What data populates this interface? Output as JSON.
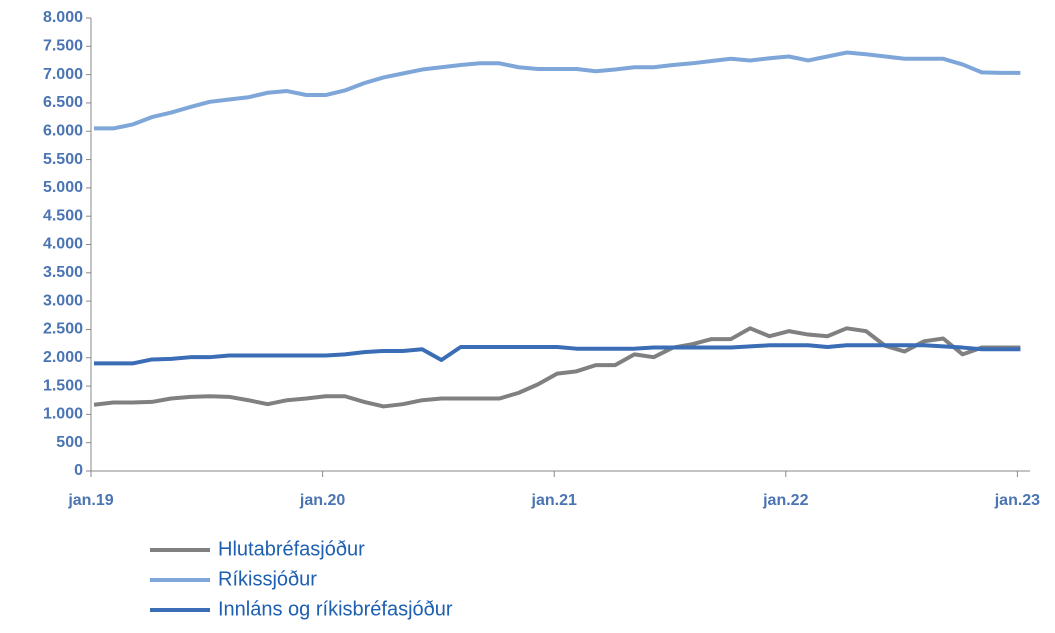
{
  "chart_data": {
    "type": "line",
    "categories": [
      "jan.19",
      null,
      null,
      null,
      null,
      null,
      null,
      null,
      null,
      null,
      null,
      null,
      "jan.20",
      null,
      null,
      null,
      null,
      null,
      null,
      null,
      null,
      null,
      null,
      null,
      "jan.21",
      null,
      null,
      null,
      null,
      null,
      null,
      null,
      null,
      null,
      null,
      null,
      "jan.22",
      null,
      null,
      null,
      null,
      null,
      null,
      null,
      null,
      null,
      null,
      null,
      "jan.23"
    ],
    "series": [
      {
        "name": "Hlutabréfasjóður",
        "color": "#808080",
        "values": [
          1170,
          1210,
          1210,
          1220,
          1280,
          1310,
          1320,
          1310,
          1250,
          1180,
          1250,
          1280,
          1320,
          1320,
          1220,
          1140,
          1180,
          1250,
          1280,
          1280,
          1280,
          1280,
          1380,
          1530,
          1720,
          1760,
          1870,
          1870,
          2060,
          2010,
          2180,
          2240,
          2330,
          2330,
          2520,
          2380,
          2470,
          2410,
          2380,
          2520,
          2470,
          2210,
          2110,
          2290,
          2340,
          2060,
          2180,
          2180,
          2180
        ]
      },
      {
        "name": "Ríkissjóður",
        "color": "#7ea6d8",
        "values": [
          6050,
          6050,
          6120,
          6250,
          6330,
          6430,
          6520,
          6560,
          6600,
          6680,
          6710,
          6640,
          6640,
          6720,
          6850,
          6950,
          7020,
          7090,
          7130,
          7170,
          7200,
          7200,
          7130,
          7100,
          7100,
          7100,
          7060,
          7090,
          7130,
          7130,
          7170,
          7200,
          7240,
          7280,
          7250,
          7290,
          7320,
          7250,
          7320,
          7390,
          7360,
          7320,
          7280,
          7280,
          7280,
          7180,
          7040,
          7030,
          7030
        ]
      },
      {
        "name": "Innláns og ríkisbréfasjóður",
        "color": "#3a6db5",
        "values": [
          1900,
          1900,
          1900,
          1970,
          1980,
          2010,
          2010,
          2040,
          2040,
          2040,
          2040,
          2040,
          2040,
          2060,
          2100,
          2120,
          2120,
          2150,
          1960,
          2190,
          2190,
          2190,
          2190,
          2190,
          2190,
          2160,
          2160,
          2160,
          2160,
          2180,
          2180,
          2180,
          2180,
          2180,
          2200,
          2220,
          2220,
          2220,
          2190,
          2220,
          2220,
          2220,
          2220,
          2220,
          2200,
          2180,
          2150,
          2150,
          2150
        ]
      }
    ],
    "ylim": [
      0,
      8000
    ],
    "yticks": [
      0,
      500,
      {
        "value": 1000,
        "label": "1.000"
      },
      {
        "value": 1500,
        "label": "1.500"
      },
      {
        "value": 2000,
        "label": "2.000"
      },
      {
        "value": 2500,
        "label": "2.500"
      },
      {
        "value": 3000,
        "label": "3.000"
      },
      {
        "value": 3500,
        "label": "3.500"
      },
      {
        "value": 4000,
        "label": "4.000"
      },
      {
        "value": 4500,
        "label": "4.500"
      },
      {
        "value": 5000,
        "label": "5.000"
      },
      {
        "value": 5500,
        "label": "5.500"
      },
      {
        "value": 6000,
        "label": "6.000"
      },
      {
        "value": 6500,
        "label": "6.500"
      },
      {
        "value": 7000,
        "label": "7.000"
      },
      {
        "value": 7500,
        "label": "7.500"
      },
      {
        "value": 8000,
        "label": "8.000"
      }
    ],
    "grid": false,
    "legend": "bottom"
  }
}
